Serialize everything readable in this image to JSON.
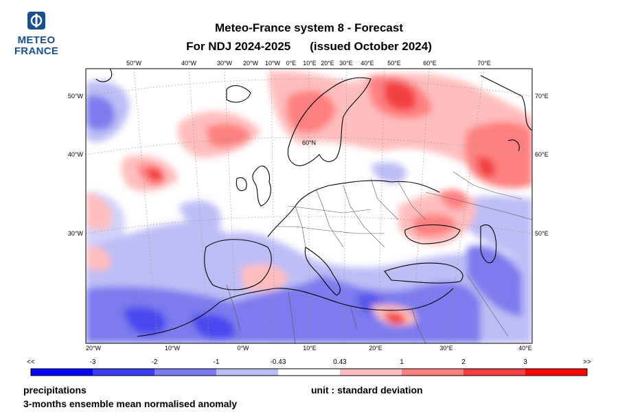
{
  "logo": {
    "line1": "METEO",
    "line2": "FRANCE"
  },
  "header": {
    "title": "Meteo-France system 8  -  Forecast",
    "period": "For NDJ 2024-2025",
    "issued": "(issued October 2024)"
  },
  "map": {
    "region": "Europe / North Atlantic",
    "top_lon_labels": [
      "50°W",
      "40°W",
      "30°W",
      "20°W",
      "10°W",
      "0°E",
      "10°E",
      "20°E",
      "30°E",
      "40°E",
      "50°E",
      "60°E",
      "70°E"
    ],
    "left_lat_labels": [
      "50°W",
      "40°W",
      "30°W"
    ],
    "right_lat_labels": [
      "70°E",
      "60°E",
      "50°E"
    ],
    "bottom_lon_labels": [
      "20°W",
      "10°W",
      "0°W",
      "10°E",
      "20°E",
      "30°E",
      "40°E"
    ],
    "inner_label": "60°N",
    "colors": {
      "coast": "#000000",
      "border": "#555555",
      "grid": "#999999"
    }
  },
  "colorbar": {
    "left_arrow": "<<",
    "right_arrow": ">>",
    "ticks": [
      "-3",
      "-2",
      "-1",
      "-0.43",
      "0.43",
      "1",
      "2",
      "3"
    ],
    "colors": [
      "#0000ff",
      "#3d3df0",
      "#7b7bee",
      "#bdbdf6",
      "#ffffff",
      "#ffbdbd",
      "#ff8080",
      "#f24040",
      "#ff0000"
    ]
  },
  "footer": {
    "variable": "precipitations",
    "description": "3-months ensemble mean normalised anomaly",
    "unit": "unit : standard deviation"
  }
}
